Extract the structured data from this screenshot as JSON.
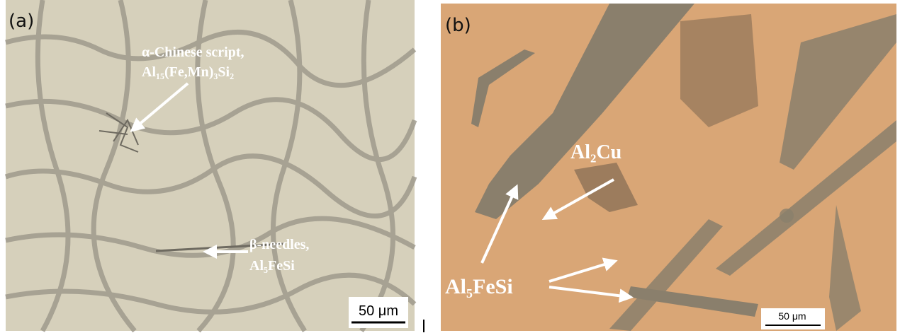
{
  "panels": [
    {
      "label": "(a)",
      "annotations": [
        "α-Chinese script,",
        "Al₁₅(Fe,Mn)₃Si₂",
        "β-needles,",
        "Al₅FeSi"
      ],
      "scale_bar": "50 μm"
    },
    {
      "label": "(b)",
      "annotations": [
        "Al₂Cu",
        "Al₅FeSi"
      ],
      "scale_bar": "50 μm"
    }
  ]
}
